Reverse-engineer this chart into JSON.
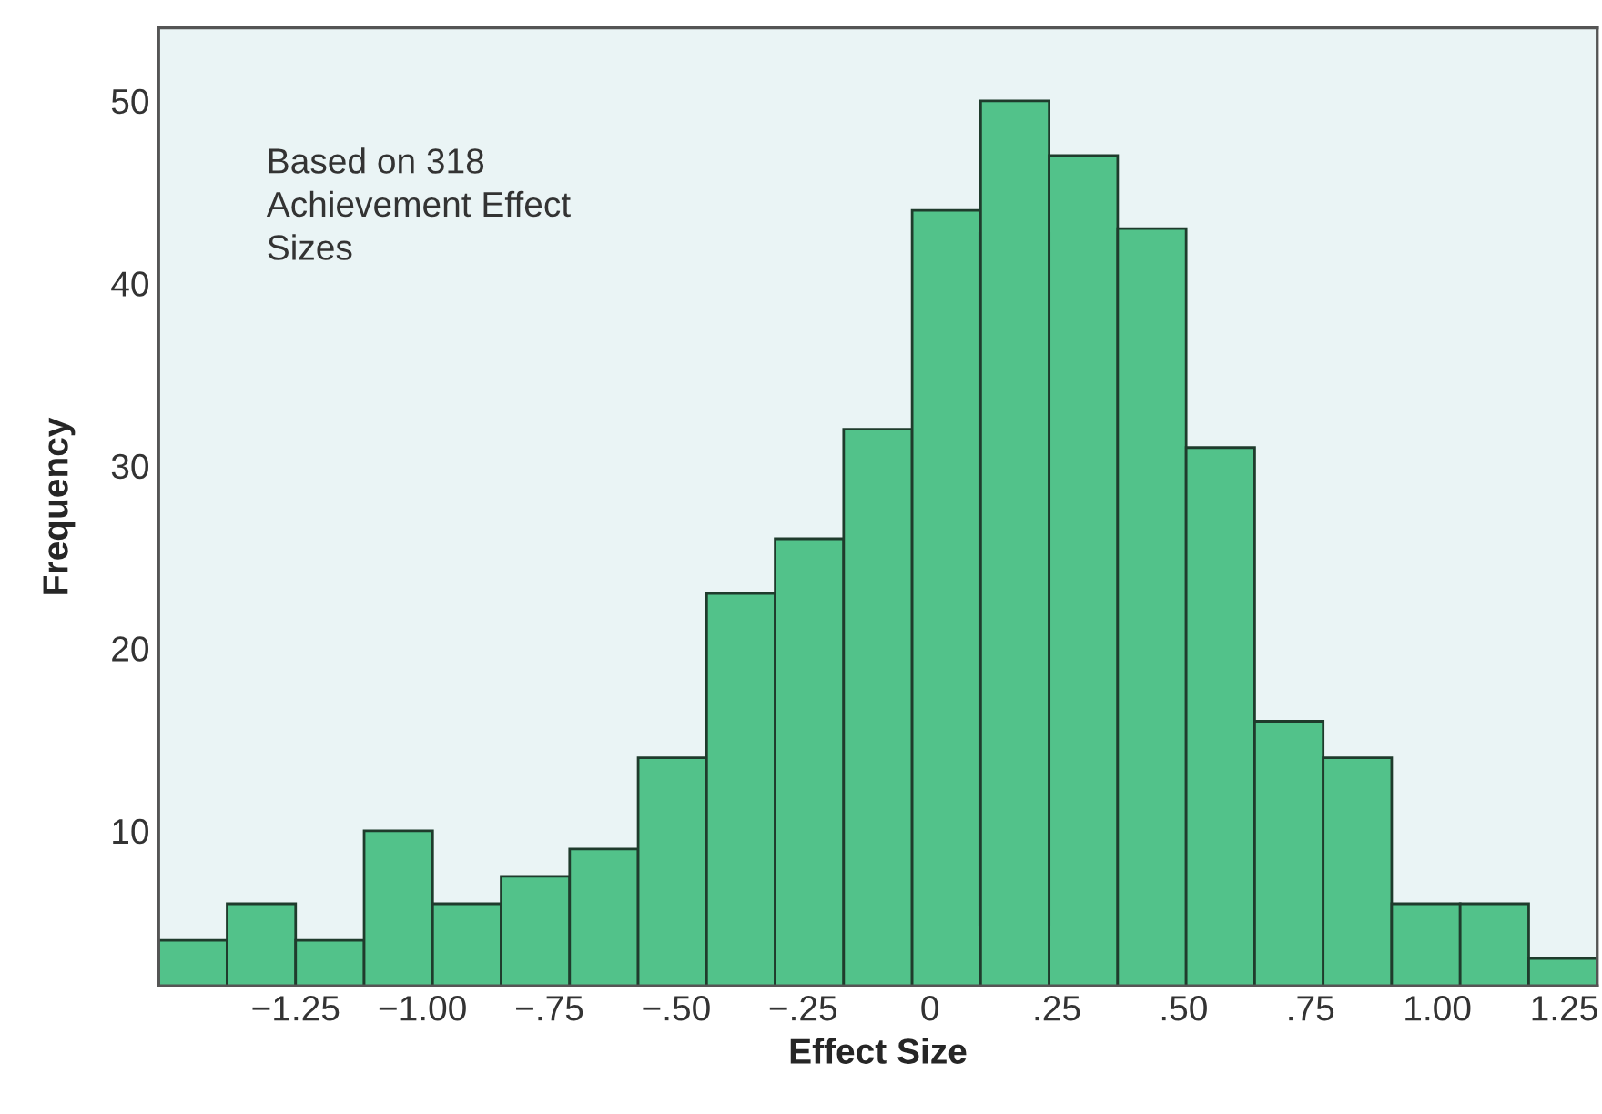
{
  "chart_data": {
    "type": "histogram",
    "xlabel": "Effect Size",
    "ylabel": "Frequency",
    "annotations": [
      "Based on 318\nAchievement Effect\nSizes"
    ],
    "bins": [
      -1.52,
      -1.385,
      -1.25,
      -1.115,
      -0.98,
      -0.845,
      -0.71,
      -0.575,
      -0.44,
      -0.305,
      -0.17,
      -0.035,
      0.1,
      0.235,
      0.37,
      0.505,
      0.64,
      0.775,
      0.91,
      1.045,
      1.18,
      1.315
    ],
    "values": [
      4,
      6,
      4,
      10,
      6,
      7.5,
      9,
      14,
      23,
      26,
      32,
      44,
      50,
      47,
      43,
      31,
      16,
      14,
      6,
      6,
      3
    ],
    "color": "#52c28a",
    "xlim": [
      -1.52,
      1.315
    ],
    "xticks": [
      {
        "value": -1.25,
        "label": "−1.25"
      },
      {
        "value": -1.0,
        "label": "−1.00"
      },
      {
        "value": -0.75,
        "label": "−.75"
      },
      {
        "value": -0.5,
        "label": "−.50"
      },
      {
        "value": -0.25,
        "label": "−.25"
      },
      {
        "value": 0,
        "label": "0"
      },
      {
        "value": 0.25,
        "label": ".25"
      },
      {
        "value": 0.5,
        "label": ".50"
      },
      {
        "value": 0.75,
        "label": ".75"
      },
      {
        "value": 1.0,
        "label": "1.00"
      },
      {
        "value": 1.25,
        "label": "1.25"
      }
    ],
    "ylim": [
      1.5,
      54
    ],
    "yticks": [
      10,
      20,
      30,
      40,
      50
    ],
    "grid": false,
    "legend": false
  }
}
